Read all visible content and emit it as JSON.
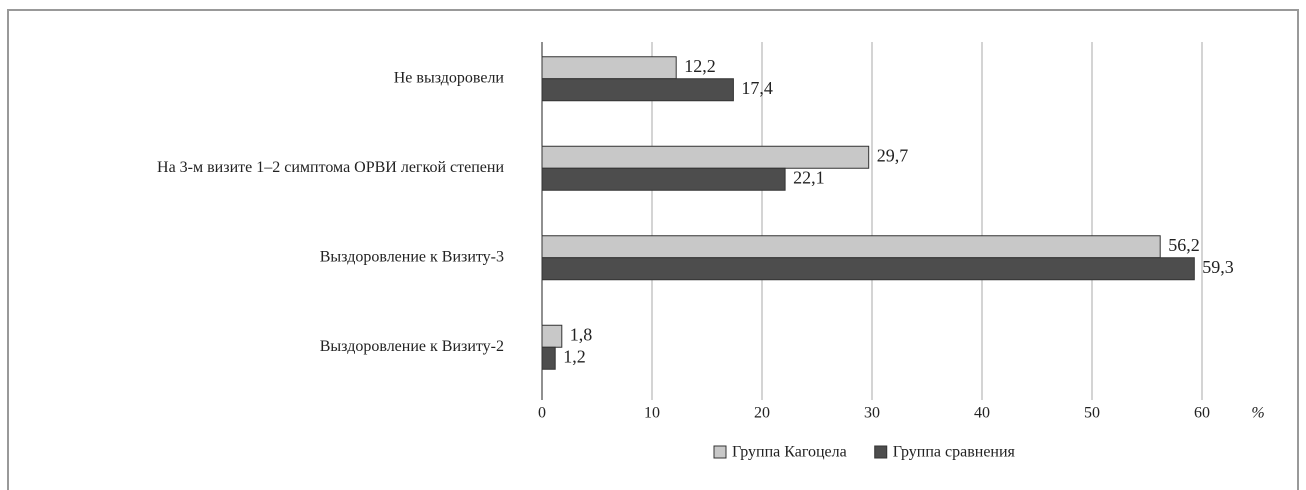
{
  "chart_data": {
    "type": "hbar",
    "categories": [
      "Не выздоровели",
      "На 3-м визите 1–2 симптома ОРВИ легкой степени",
      "Выздоровление к Визиту-3",
      "Выздоровление к Визиту-2"
    ],
    "series": [
      {
        "name": "Группа Кагоцела",
        "color": "#c8c8c8",
        "values": [
          12.2,
          29.7,
          56.2,
          1.8
        ],
        "value_labels": [
          "12,2",
          "29,7",
          "56,2",
          "1,8"
        ]
      },
      {
        "name": "Группа сравнения",
        "color": "#4d4d4d",
        "values": [
          17.4,
          22.1,
          59.3,
          1.2
        ],
        "value_labels": [
          "17,4",
          "22,1",
          "59,3",
          "1,2"
        ]
      }
    ],
    "x_label": "%",
    "xlim": [
      0,
      60
    ],
    "xticks": [
      0,
      10,
      20,
      30,
      40,
      50,
      60
    ],
    "grid": true,
    "legend": "bottom"
  }
}
